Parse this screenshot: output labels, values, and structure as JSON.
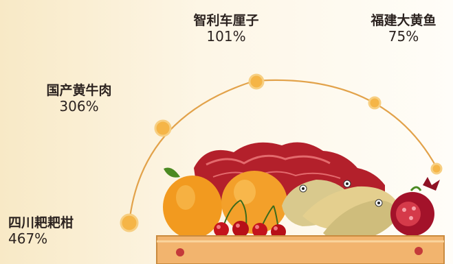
{
  "items": [
    {
      "name": "四川耙耙柑",
      "pct": "467%"
    },
    {
      "name": "国产黄牛肉",
      "pct": "306%"
    },
    {
      "name": "智利车厘子",
      "pct": "101%"
    },
    {
      "name": "福建大黄鱼",
      "pct": "75%"
    }
  ],
  "colors": {
    "arc": "#e2a24a",
    "dot": "#f5b547",
    "crate": "#f2b46e",
    "orange": "#f29a1f",
    "meat": "#b3202b",
    "cherry": "#c4141c",
    "fish": "#d9c98d",
    "pomegranate": "#a3122a"
  }
}
